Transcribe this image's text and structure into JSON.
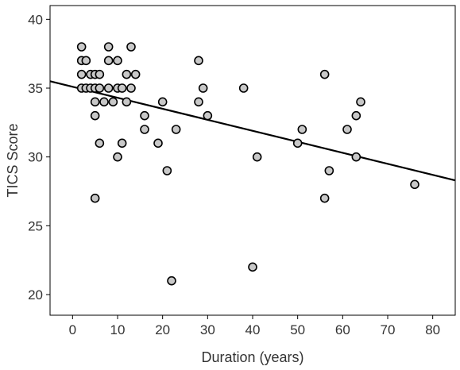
{
  "chart_data": {
    "type": "scatter",
    "title": "",
    "xlabel": "Duration (years)",
    "ylabel": "TICS Score",
    "xlim": [
      -5,
      85
    ],
    "ylim": [
      18.5,
      41
    ],
    "xticks": [
      0,
      10,
      20,
      30,
      40,
      50,
      60,
      70,
      80
    ],
    "yticks": [
      20,
      25,
      30,
      35,
      40
    ],
    "grid": false,
    "legend": "none",
    "marker_fill": "#c8c8c8",
    "marker_stroke": "#000000",
    "line_color": "#000000",
    "points": [
      {
        "x": 2,
        "y": 38
      },
      {
        "x": 2,
        "y": 37
      },
      {
        "x": 2,
        "y": 36
      },
      {
        "x": 2,
        "y": 35
      },
      {
        "x": 3,
        "y": 37
      },
      {
        "x": 3,
        "y": 35
      },
      {
        "x": 4,
        "y": 36
      },
      {
        "x": 4,
        "y": 35
      },
      {
        "x": 5,
        "y": 36
      },
      {
        "x": 5,
        "y": 35
      },
      {
        "x": 5,
        "y": 34
      },
      {
        "x": 5,
        "y": 33
      },
      {
        "x": 5,
        "y": 27
      },
      {
        "x": 6,
        "y": 36
      },
      {
        "x": 6,
        "y": 35
      },
      {
        "x": 6,
        "y": 31
      },
      {
        "x": 7,
        "y": 34
      },
      {
        "x": 8,
        "y": 38
      },
      {
        "x": 8,
        "y": 37
      },
      {
        "x": 8,
        "y": 35
      },
      {
        "x": 9,
        "y": 34
      },
      {
        "x": 10,
        "y": 37
      },
      {
        "x": 10,
        "y": 35
      },
      {
        "x": 10,
        "y": 30
      },
      {
        "x": 11,
        "y": 35
      },
      {
        "x": 11,
        "y": 31
      },
      {
        "x": 12,
        "y": 36
      },
      {
        "x": 12,
        "y": 34
      },
      {
        "x": 13,
        "y": 38
      },
      {
        "x": 13,
        "y": 35
      },
      {
        "x": 14,
        "y": 36
      },
      {
        "x": 16,
        "y": 33
      },
      {
        "x": 16,
        "y": 32
      },
      {
        "x": 19,
        "y": 31
      },
      {
        "x": 20,
        "y": 34
      },
      {
        "x": 21,
        "y": 29
      },
      {
        "x": 22,
        "y": 21
      },
      {
        "x": 23,
        "y": 32
      },
      {
        "x": 28,
        "y": 37
      },
      {
        "x": 28,
        "y": 34
      },
      {
        "x": 29,
        "y": 35
      },
      {
        "x": 30,
        "y": 33
      },
      {
        "x": 38,
        "y": 35
      },
      {
        "x": 40,
        "y": 22
      },
      {
        "x": 41,
        "y": 30
      },
      {
        "x": 50,
        "y": 31
      },
      {
        "x": 51,
        "y": 32
      },
      {
        "x": 56,
        "y": 36
      },
      {
        "x": 56,
        "y": 27
      },
      {
        "x": 57,
        "y": 29
      },
      {
        "x": 61,
        "y": 32
      },
      {
        "x": 63,
        "y": 33
      },
      {
        "x": 63,
        "y": 30
      },
      {
        "x": 64,
        "y": 34
      },
      {
        "x": 76,
        "y": 28
      }
    ],
    "trend_line": {
      "x": [
        -5,
        85
      ],
      "y": [
        35.5,
        28.3
      ]
    }
  }
}
